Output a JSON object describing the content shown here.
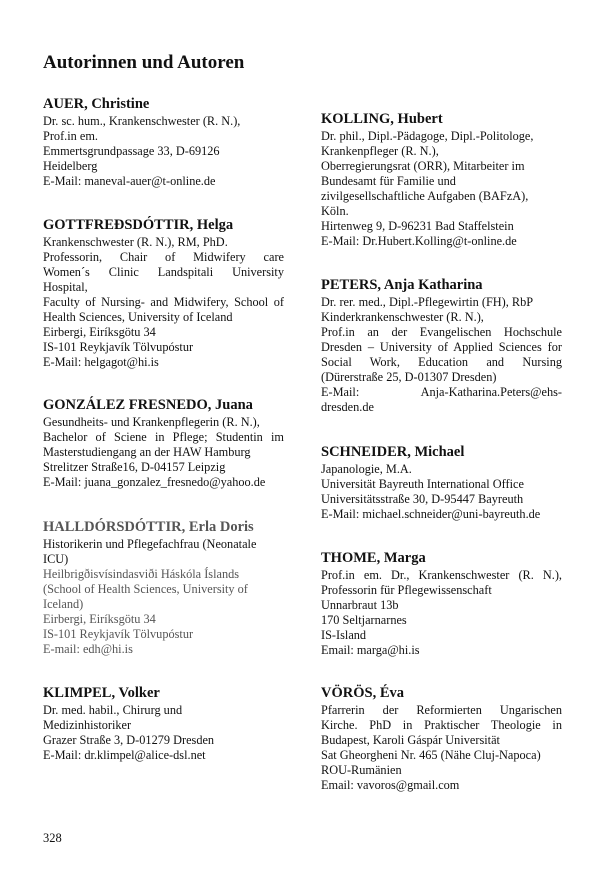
{
  "title": "Autorinnen und Autoren",
  "page_number": "328",
  "entries": [
    {
      "name": "AUER, Christine",
      "lines": [
        "Dr. sc. hum., Krankenschwester (R. N.),",
        "Prof.in em.",
        "Emmertsgrundpassage 33, D-69126",
        "Heidelberg",
        "E-Mail: maneval-auer@t-online.de"
      ]
    },
    {
      "name": "GOTTFREÐSDÓTTIR, Helga",
      "lines": [
        "Krankenschwester (R. N.), RM, PhD.",
        "Professorin, Chair of Midwifery care",
        "Women´s Clinic Landspitali University",
        "Hospital,",
        "Faculty of Nursing- and Midwifery, School of",
        "Health Sciences, University of Iceland",
        "Eirbergi, Eiríksgötu 34",
        "IS-101 Reykjavík Tölvupóstur",
        "E-Mail: helgagot@hi.is"
      ]
    },
    {
      "name": "GONZÁLEZ FRESNEDO, Juana",
      "lines": [
        "Gesundheits- und Krankenpflegerin (R. N.),",
        "Bachelor of Sciene in Pflege; Studentin im",
        "Masterstudiengang an der HAW Hamburg",
        "Strelitzer Straße16, D-04157 Leipzig",
        "E-Mail: juana_gonzalez_fresnedo@yahoo.de"
      ]
    },
    {
      "name": "HALLDÓRSDÓTTIR, Erla Doris",
      "lines": [
        "Historikerin und Pflegefachfrau (Neonatale",
        "ICU)",
        "Heilbrigðisvísindasviði Háskóla Íslands",
        "(School of Health Sciences, University of",
        "Iceland)",
        "Eirbergi, Eiríksgötu 34",
        "IS-101 Reykjavík Tölvupóstur",
        "E-mail: edh@hi.is"
      ]
    },
    {
      "name": "KLIMPEL, Volker",
      "lines": [
        "Dr. med. habil., Chirurg und",
        "Medizinhistoriker",
        "Grazer Straße 3, D-01279 Dresden",
        "E-Mail: dr.klimpel@alice-dsl.net"
      ]
    },
    {
      "name": "KOLLING, Hubert",
      "lines": [
        "Dr. phil., Dipl.-Pädagoge, Dipl.-Politologe,",
        "Krankenpfleger (R. N.),",
        "Oberregierungsrat (ORR), Mitarbeiter im",
        "Bundesamt für Familie und",
        "zivilgesellschaftliche Aufgaben (BAFzA),",
        "Köln.",
        "Hirtenweg 9, D-96231 Bad Staffelstein",
        "E-Mail: Dr.Hubert.Kolling@t-online.de"
      ]
    },
    {
      "name": "PETERS, Anja Katharina",
      "lines": [
        "Dr. rer. med., Dipl.-Pflegewirtin (FH), RbP",
        "Kinderkrankenschwester (R. N.),",
        "Prof.in an der Evangelischen Hochschule",
        "Dresden – University of Applied Sciences for",
        "Social Work, Education and Nursing",
        "(Dürerstraße 25, D-01307 Dresden)",
        "E-Mail: Anja-Katharina.Peters@ehs-",
        "dresden.de"
      ]
    },
    {
      "name": "SCHNEIDER, Michael",
      "lines": [
        "Japanologie, M.A.",
        "Universität Bayreuth International Office",
        "Universitätsstraße 30, D-95447 Bayreuth",
        "E-Mail: michael.schneider@uni-bayreuth.de"
      ]
    },
    {
      "name": "THOME, Marga",
      "lines": [
        "Prof.in em. Dr., Krankenschwester (R. N.),",
        "Professorin für Pflegewissenschaft",
        "Unnarbraut 13b",
        "170 Seltjarnarnes",
        "IS-Island",
        "Email: marga@hi.is"
      ]
    },
    {
      "name": "VÖRÖS, Éva",
      "lines": [
        "Pfarrerin der Reformierten Ungarischen",
        "Kirche. PhD in Praktischer Theologie in",
        "Budapest, Karoli Gáspár Universität",
        "Sat Gheorgheni Nr. 465 (Nähe Cluj-Napoca)",
        "ROU-Rumänien",
        "Email: vavoros@gmail.com"
      ]
    }
  ]
}
